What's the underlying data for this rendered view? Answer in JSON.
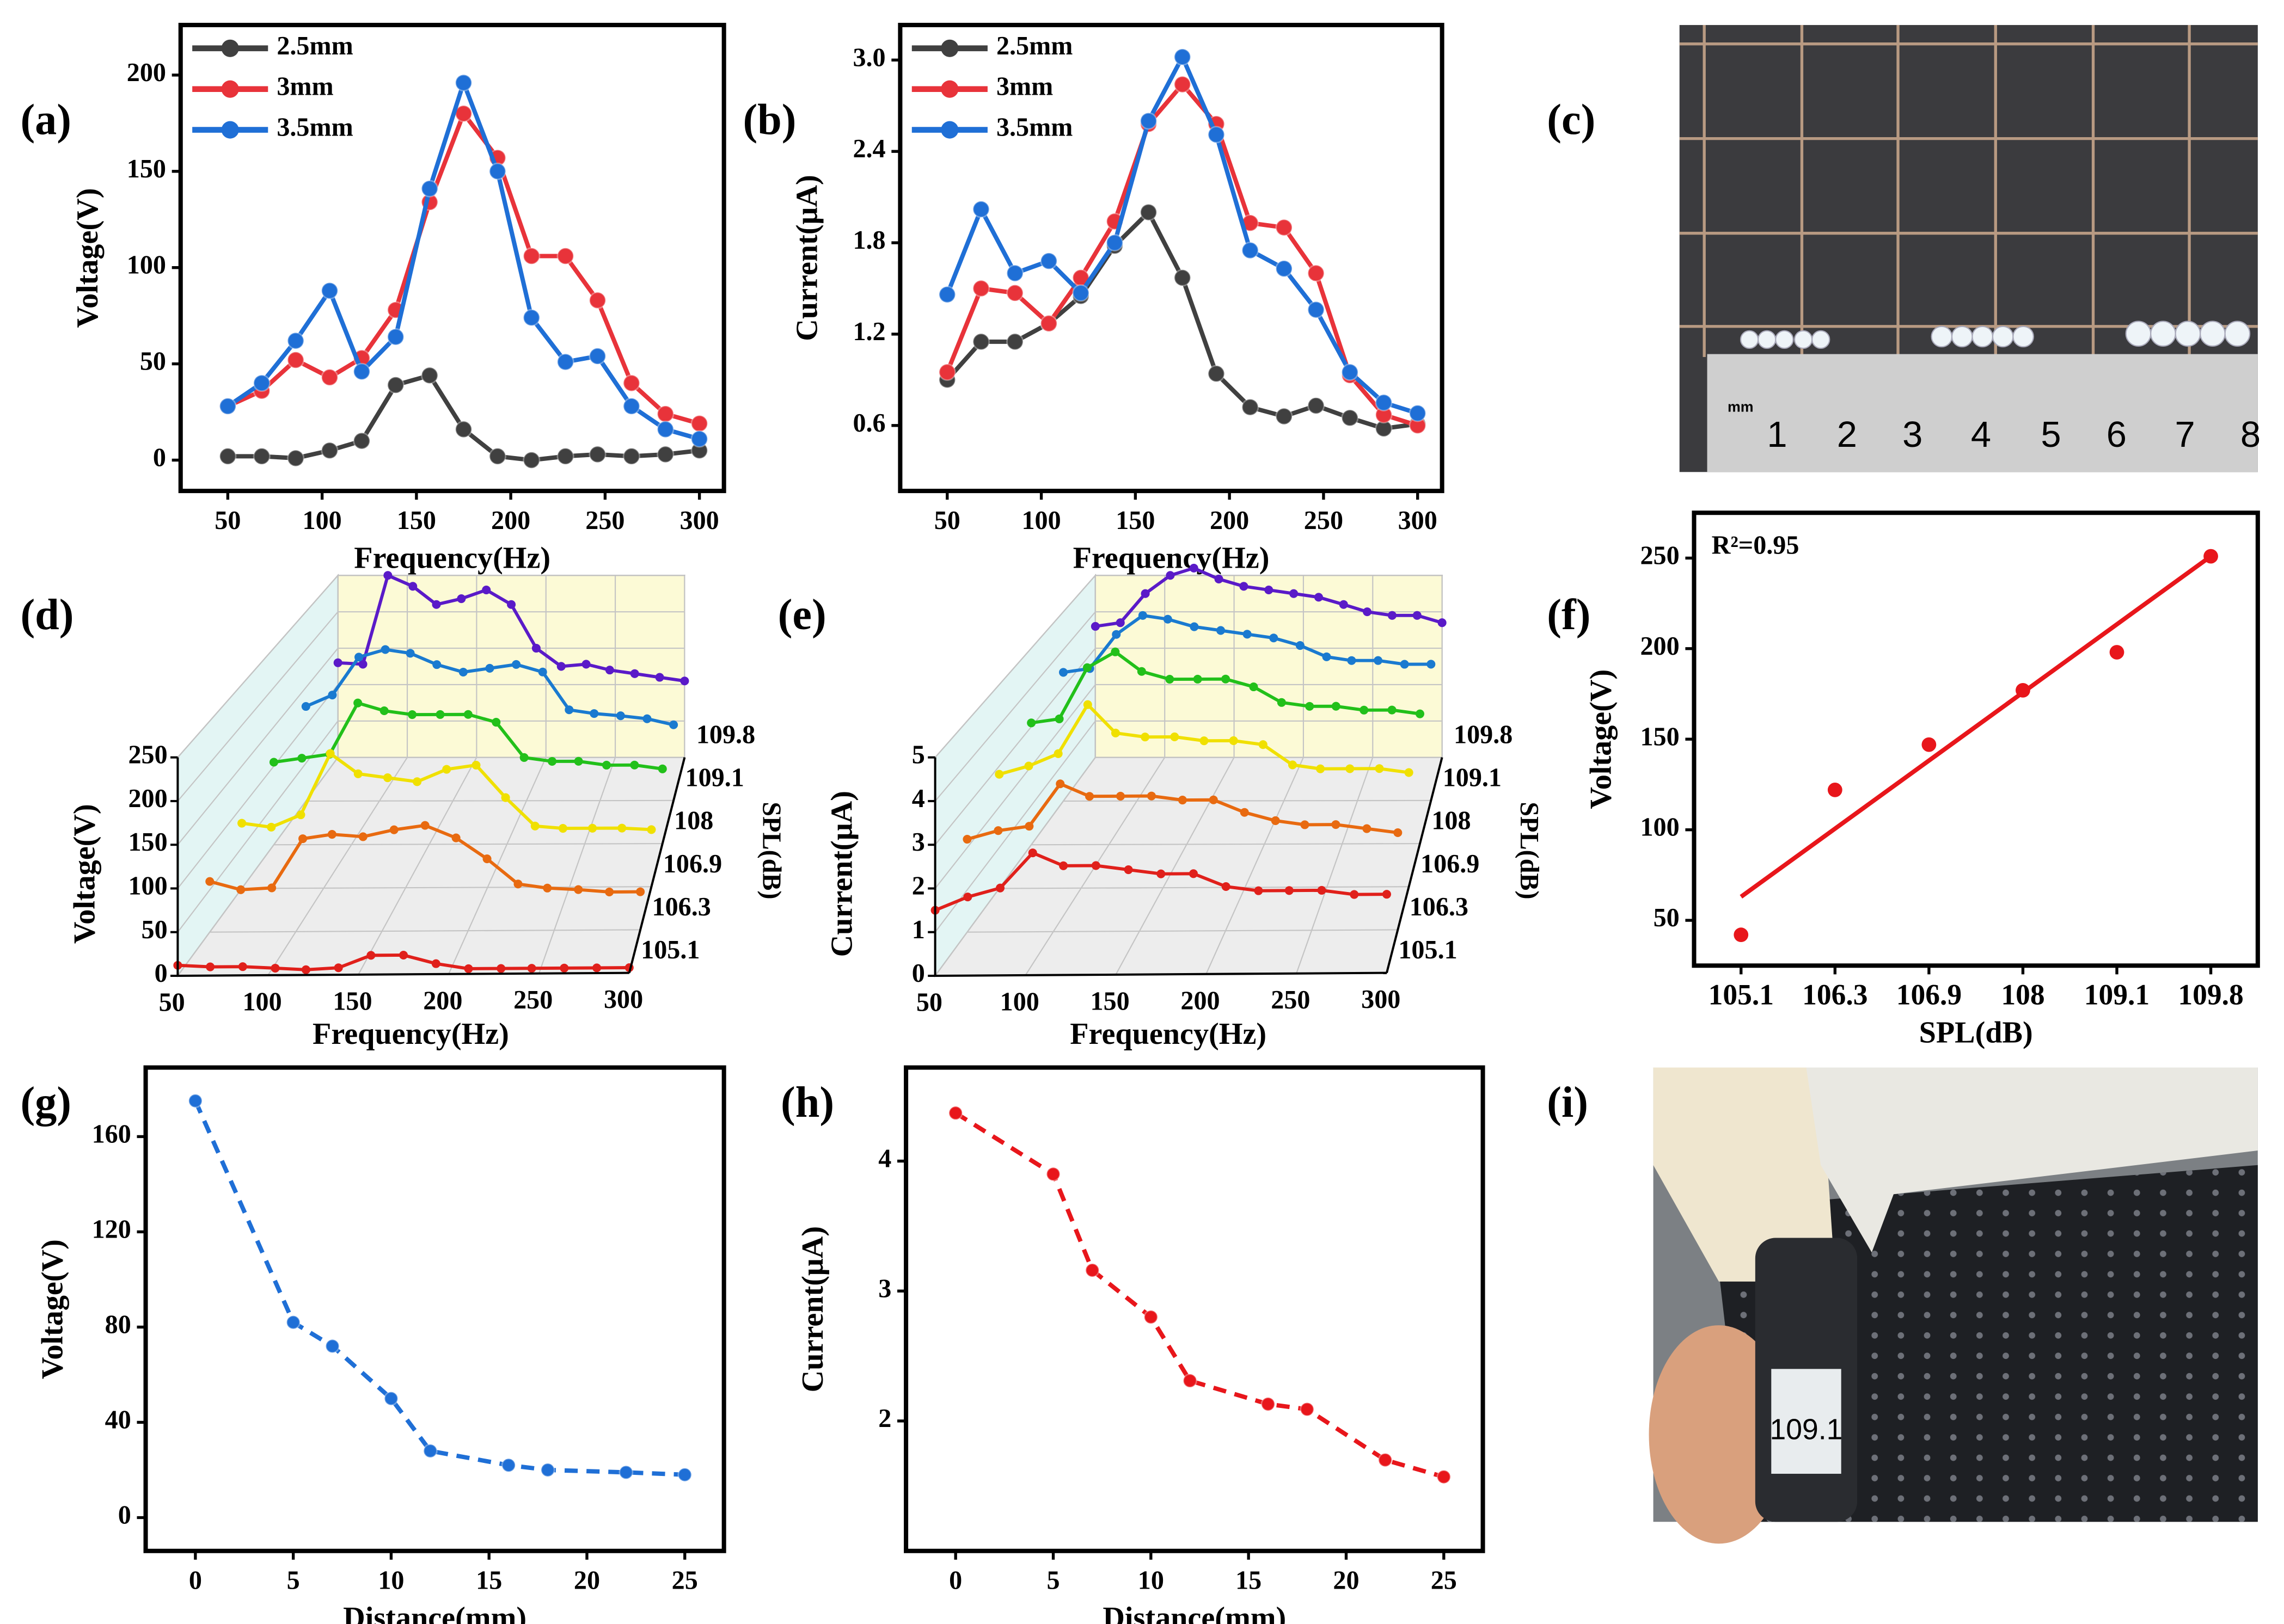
{
  "chart_data": [
    {
      "panel": "(a)",
      "type": "line",
      "x_label": "Frequency(Hz)",
      "y_label": "Voltage(V)",
      "x": [
        50,
        68,
        86,
        104,
        121,
        139,
        157,
        175,
        193,
        211,
        229,
        246,
        264,
        282,
        300
      ],
      "xlim": [
        25,
        313
      ],
      "xticks": [
        50,
        100,
        150,
        200,
        250,
        300
      ],
      "ylim": [
        -16,
        226
      ],
      "yticks": [
        0,
        50,
        100,
        150,
        200
      ],
      "legend": "upper left",
      "series": [
        {
          "name": "2.5mm",
          "color": "#404040",
          "values": [
            2,
            2,
            1,
            5,
            10,
            39,
            44,
            16,
            2,
            0,
            2,
            3,
            2,
            3,
            5
          ]
        },
        {
          "name": "3mm",
          "color": "#e8333a",
          "values": [
            28,
            36,
            52,
            43,
            53,
            78,
            134,
            180,
            157,
            106,
            106,
            83,
            40,
            24,
            19
          ]
        },
        {
          "name": "3.5mm",
          "color": "#1f6fd6",
          "values": [
            28,
            40,
            62,
            88,
            46,
            64,
            141,
            196,
            150,
            74,
            51,
            54,
            28,
            16,
            11
          ]
        }
      ]
    },
    {
      "panel": "(b)",
      "type": "line",
      "x_label": "Frequency(Hz)",
      "y_label": "Current(μA)",
      "x": [
        50,
        68,
        86,
        104,
        121,
        139,
        157,
        175,
        193,
        211,
        229,
        246,
        264,
        282,
        300
      ],
      "xlim": [
        25,
        313
      ],
      "xticks": [
        50,
        100,
        150,
        200,
        250,
        300
      ],
      "ylim": [
        0.17,
        3.23
      ],
      "yticks": [
        0.6,
        1.2,
        1.8,
        2.4,
        {
          "value": 3,
          "label": "3.0"
        }
      ],
      "legend": "upper left",
      "series": [
        {
          "name": "2.5mm",
          "color": "#404040",
          "values": [
            0.9,
            1.15,
            1.15,
            1.27,
            1.45,
            1.78,
            2.0,
            1.57,
            0.94,
            0.72,
            0.66,
            0.73,
            0.65,
            0.58,
            0.61
          ]
        },
        {
          "name": "3mm",
          "color": "#e8333a",
          "values": [
            0.95,
            1.5,
            1.47,
            1.27,
            1.57,
            1.94,
            2.58,
            2.84,
            2.58,
            1.93,
            1.9,
            1.6,
            0.93,
            0.67,
            0.6
          ]
        },
        {
          "name": "3.5mm",
          "color": "#1f6fd6",
          "values": [
            1.46,
            2.02,
            1.6,
            1.68,
            1.47,
            1.8,
            2.6,
            3.02,
            2.51,
            1.75,
            1.63,
            1.36,
            0.95,
            0.75,
            0.68
          ]
        }
      ]
    },
    {
      "panel": "(d)",
      "type": "line3d",
      "x_label": "Frequency(Hz)",
      "z_label": "Voltage(V)",
      "depth_label": "SPL(dB)",
      "x": [
        50,
        68,
        86,
        104,
        121,
        139,
        157,
        175,
        193,
        211,
        229,
        246,
        264,
        282,
        300
      ],
      "xlim": [
        50,
        300
      ],
      "xticks": [
        50,
        100,
        150,
        200,
        250,
        300
      ],
      "zlim": [
        0,
        250
      ],
      "zticks": [
        0,
        50,
        100,
        150,
        200,
        250
      ],
      "series": [
        {
          "name": "105.1",
          "color": "#e0201b",
          "values": [
            12,
            10,
            10,
            8,
            6,
            8,
            22,
            22,
            12,
            6,
            6,
            6,
            6,
            6,
            6
          ]
        },
        {
          "name": "106.3",
          "color": "#e86a10",
          "values": [
            60,
            50,
            52,
            110,
            115,
            112,
            120,
            125,
            110,
            85,
            55,
            50,
            48,
            45,
            45
          ]
        },
        {
          "name": "106.9",
          "color": "#f0e000",
          "values": [
            80,
            75,
            90,
            165,
            140,
            135,
            130,
            145,
            150,
            110,
            75,
            72,
            72,
            72,
            70
          ]
        },
        {
          "name": "108",
          "color": "#22c01a",
          "values": [
            105,
            110,
            115,
            180,
            170,
            165,
            165,
            165,
            155,
            110,
            105,
            105,
            100,
            100,
            95
          ]
        },
        {
          "name": "109.1",
          "color": "#1a7ad0",
          "values": [
            125,
            140,
            190,
            200,
            195,
            180,
            170,
            175,
            180,
            170,
            120,
            115,
            112,
            108,
            100
          ]
        },
        {
          "name": "109.8",
          "color": "#5a1ac8",
          "values": [
            130,
            128,
            250,
            235,
            210,
            218,
            230,
            210,
            150,
            125,
            128,
            120,
            115,
            110,
            105
          ]
        }
      ]
    },
    {
      "panel": "(e)",
      "type": "line3d",
      "x_label": "Frequency(Hz)",
      "z_label": "Current(μA)",
      "depth_label": "SPL(dB)",
      "x": [
        50,
        68,
        86,
        104,
        121,
        139,
        157,
        175,
        193,
        211,
        229,
        246,
        264,
        282,
        300
      ],
      "xlim": [
        50,
        300
      ],
      "xticks": [
        50,
        100,
        150,
        200,
        250,
        300
      ],
      "zlim": [
        0,
        5
      ],
      "zticks": [
        0,
        1,
        2,
        3,
        4,
        5
      ],
      "series": [
        {
          "name": "105.1",
          "color": "#e0201b",
          "values": [
            1.5,
            1.8,
            2.0,
            2.8,
            2.5,
            2.5,
            2.4,
            2.3,
            2.3,
            2.0,
            1.9,
            1.9,
            1.9,
            1.8,
            1.8
          ]
        },
        {
          "name": "106.3",
          "color": "#e86a10",
          "values": [
            2.2,
            2.4,
            2.5,
            3.5,
            3.2,
            3.2,
            3.2,
            3.1,
            3.1,
            2.8,
            2.6,
            2.5,
            2.5,
            2.4,
            2.3
          ]
        },
        {
          "name": "106.9",
          "color": "#f0e000",
          "values": [
            2.8,
            3.0,
            3.3,
            4.5,
            3.8,
            3.7,
            3.7,
            3.6,
            3.6,
            3.5,
            3.0,
            2.9,
            2.9,
            2.9,
            2.8
          ]
        },
        {
          "name": "108",
          "color": "#22c01a",
          "values": [
            3.1,
            3.2,
            4.5,
            4.9,
            4.4,
            4.2,
            4.2,
            4.2,
            4.0,
            3.6,
            3.5,
            3.5,
            3.4,
            3.4,
            3.3
          ]
        },
        {
          "name": "109.1",
          "color": "#1a7ad0",
          "values": [
            3.4,
            3.5,
            4.4,
            4.9,
            4.8,
            4.6,
            4.5,
            4.4,
            4.3,
            4.1,
            3.8,
            3.7,
            3.7,
            3.6,
            3.6
          ]
        },
        {
          "name": "109.8",
          "color": "#5a1ac8",
          "values": [
            3.6,
            3.7,
            4.5,
            5.0,
            5.2,
            4.9,
            4.7,
            4.6,
            4.5,
            4.4,
            4.2,
            4.0,
            3.9,
            3.9,
            3.7
          ]
        }
      ]
    },
    {
      "panel": "(f)",
      "type": "scatter",
      "x_label": "SPL(dB)",
      "y_label": "Voltage(V)",
      "annotation": "R²=0.95",
      "categories": [
        "105.1",
        "106.3",
        "106.9",
        "108",
        "109.1",
        "109.8"
      ],
      "values": [
        42,
        122,
        147,
        177,
        198,
        251
      ],
      "fit_values": [
        63,
        251
      ],
      "color": "#e8161b",
      "ylim": [
        25,
        275
      ],
      "yticks": [
        50,
        100,
        150,
        200,
        250
      ]
    },
    {
      "panel": "(g)",
      "type": "line",
      "line_style": "dashed",
      "x_label": "Distance(mm)",
      "y_label": "Voltage(V)",
      "x": [
        0,
        5,
        7,
        10,
        12,
        16,
        18,
        22,
        25
      ],
      "xlim": [
        -2.54,
        27
      ],
      "xticks": [
        0,
        5,
        10,
        15,
        20,
        25
      ],
      "ylim": [
        -14,
        189
      ],
      "yticks": [
        0,
        40,
        80,
        120,
        160
      ],
      "series": [
        {
          "color": "#1f6fd6",
          "values": [
            175,
            82,
            72,
            50,
            28,
            22,
            20,
            19,
            18
          ]
        }
      ]
    },
    {
      "panel": "(h)",
      "type": "line",
      "line_style": "dashed",
      "x_label": "Distance(mm)",
      "y_label": "Current(μA)",
      "x": [
        0,
        5,
        7,
        10,
        12,
        16,
        18,
        22,
        25
      ],
      "xlim": [
        -2.54,
        27
      ],
      "xticks": [
        0,
        5,
        10,
        15,
        20,
        25
      ],
      "ylim": [
        1.0,
        4.72
      ],
      "yticks": [
        2,
        3,
        4
      ],
      "series": [
        {
          "color": "#e8161b",
          "values": [
            4.37,
            3.9,
            3.16,
            2.8,
            2.31,
            2.13,
            2.09,
            1.7,
            1.57
          ]
        }
      ]
    }
  ],
  "photos": [
    {
      "panel": "(c)",
      "ruler_unit": "mm",
      "ruler_labels": [
        "1",
        "2",
        "3",
        "4",
        "5",
        "6",
        "7",
        "8"
      ]
    },
    {
      "panel": "(i)",
      "meter_reading": "109.1"
    }
  ]
}
